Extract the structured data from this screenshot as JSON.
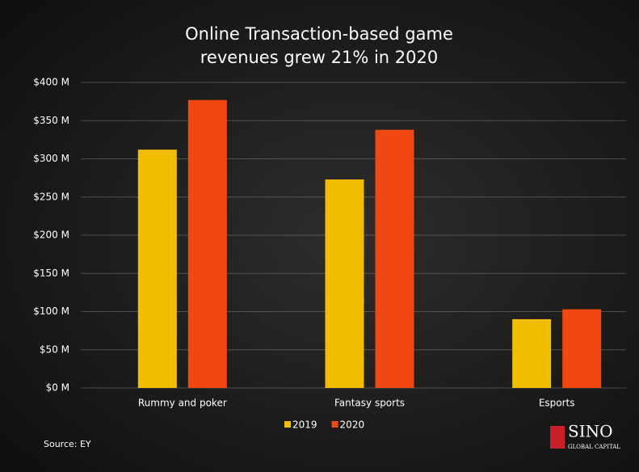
{
  "chart_data": {
    "type": "bar",
    "title": [
      "Online Transaction-based game",
      "revenues grew 21% in 2020"
    ],
    "categories": [
      "Rummy and poker",
      "Fantasy sports",
      "Esports"
    ],
    "series": [
      {
        "name": "2019",
        "color": "#f2be00",
        "values": [
          312,
          273,
          90
        ]
      },
      {
        "name": "2020",
        "color": "#f04810",
        "values": [
          377,
          338,
          103
        ]
      }
    ],
    "ylim": [
      0,
      400
    ],
    "yticks": [
      {
        "value": 0,
        "label": "$0 M"
      },
      {
        "value": 50,
        "label": "$50 M"
      },
      {
        "value": 100,
        "label": "$100 M"
      },
      {
        "value": 150,
        "label": "$150 M"
      },
      {
        "value": 200,
        "label": "$200 M"
      },
      {
        "value": 250,
        "label": "$250 M"
      },
      {
        "value": 300,
        "label": "$300 M"
      },
      {
        "value": 350,
        "label": "$350 M"
      },
      {
        "value": 400,
        "label": "$400 M"
      }
    ],
    "grid": true,
    "legend": "bottom",
    "source": "Source: EY",
    "logo": {
      "name": "SINO",
      "tagline": "GLOBAL CAPITAL"
    }
  }
}
